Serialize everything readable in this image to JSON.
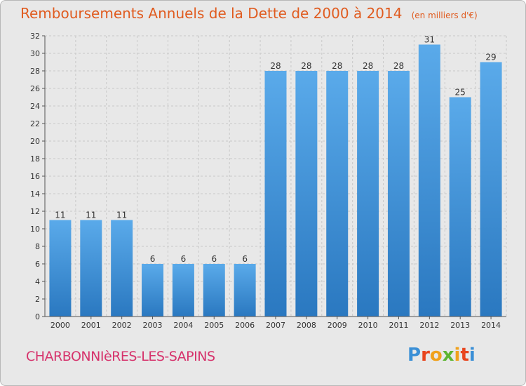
{
  "header": {
    "title": "Remboursements Annuels de la Dette de 2000 à 2014",
    "unit": "(en milliers d'€)"
  },
  "footer": {
    "commune": "CHARBONNIèRES-LES-SAPINS",
    "logo_text": "Proxiti",
    "logo_colors": [
      "#3a8fd6",
      "#e8451e",
      "#f0a11b",
      "#5cb531",
      "#f0a11b",
      "#e8451e",
      "#3a8fd6"
    ]
  },
  "colors": {
    "bar_top": "#5aaaea",
    "bar_bottom": "#2a78c0",
    "title": "#e05b1f",
    "commune": "#d6336c"
  },
  "chart_data": {
    "type": "bar",
    "title": "Remboursements Annuels de la Dette de 2000 à 2014",
    "unit": "(en milliers d'€)",
    "categories": [
      "2000",
      "2001",
      "2002",
      "2003",
      "2004",
      "2005",
      "2006",
      "2007",
      "2008",
      "2009",
      "2010",
      "2011",
      "2012",
      "2013",
      "2014"
    ],
    "values": [
      11,
      11,
      11,
      6,
      6,
      6,
      6,
      28,
      28,
      28,
      28,
      28,
      31,
      25,
      29
    ],
    "data_labels": [
      "11",
      "11",
      "11",
      "6",
      "6",
      "6",
      "6",
      "28",
      "28",
      "28",
      "28",
      "28",
      "31",
      "25",
      "29"
    ],
    "ylim": [
      0,
      32
    ],
    "yticks": [
      0,
      2,
      4,
      6,
      8,
      10,
      12,
      14,
      16,
      18,
      20,
      22,
      24,
      26,
      28,
      30,
      32
    ],
    "grid": true,
    "legend": "none"
  }
}
